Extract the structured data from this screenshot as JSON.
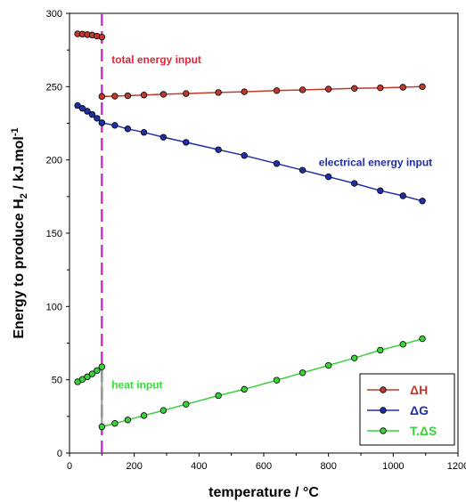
{
  "chart_data": {
    "type": "line",
    "xlabel": "temperature / °C",
    "ylabel_prefix": "Energy to produce H",
    "ylabel_sub": "2",
    "ylabel_suffix": " / kJ.mol",
    "ylabel_sup": "-1",
    "xlim": [
      0,
      1200
    ],
    "ylim": [
      0,
      300
    ],
    "x_ticks": [
      "0",
      "200",
      "400",
      "600",
      "800",
      "1000",
      "1200"
    ],
    "y_ticks": [
      "0",
      "50",
      "100",
      "150",
      "200",
      "250",
      "300"
    ],
    "grid": false,
    "legend_position": "bottom-right",
    "phase_boundary_x": 100,
    "series": [
      {
        "name": "ΔH",
        "color": "#c0392b",
        "segments": [
          [
            [
              25,
              286
            ],
            [
              40,
              285.8
            ],
            [
              55,
              285.5
            ],
            [
              70,
              285.2
            ],
            [
              85,
              284.5
            ],
            [
              100,
              283.8
            ]
          ],
          [
            [
              100,
              243.3
            ],
            [
              140,
              243.5
            ],
            [
              180,
              243.8
            ],
            [
              230,
              244.3
            ],
            [
              290,
              244.8
            ],
            [
              360,
              245.3
            ],
            [
              460,
              246.0
            ],
            [
              540,
              246.5
            ],
            [
              640,
              247.3
            ],
            [
              720,
              247.8
            ],
            [
              800,
              248.3
            ],
            [
              880,
              248.8
            ],
            [
              960,
              249.2
            ],
            [
              1030,
              249.6
            ],
            [
              1090,
              250.0
            ]
          ]
        ]
      },
      {
        "name": "ΔG",
        "color": "#1f2fa6",
        "segments": [
          [
            [
              25,
              237.1
            ],
            [
              40,
              235.2
            ],
            [
              55,
              233.2
            ],
            [
              70,
              231.0
            ],
            [
              85,
              228.4
            ],
            [
              100,
              225.3
            ]
          ],
          [
            [
              100,
              225.3
            ],
            [
              140,
              223.6
            ],
            [
              180,
              221.2
            ],
            [
              230,
              218.8
            ],
            [
              290,
              215.5
            ],
            [
              360,
              212.0
            ],
            [
              460,
              207.0
            ],
            [
              540,
              203.0
            ],
            [
              640,
              197.5
            ],
            [
              720,
              193.0
            ],
            [
              800,
              188.5
            ],
            [
              880,
              184.0
            ],
            [
              960,
              179.0
            ],
            [
              1030,
              175.5
            ],
            [
              1090,
              172.0
            ]
          ]
        ]
      },
      {
        "name": "T.ΔS",
        "color": "#3ad13a",
        "segments": [
          [
            [
              25,
              48.6
            ],
            [
              40,
              50.3
            ],
            [
              55,
              52.0
            ],
            [
              70,
              54.0
            ],
            [
              85,
              56.3
            ],
            [
              100,
              58.8
            ]
          ],
          [
            [
              100,
              17.9
            ],
            [
              140,
              20.2
            ],
            [
              180,
              22.6
            ],
            [
              230,
              25.6
            ],
            [
              290,
              29.1
            ],
            [
              360,
              33.3
            ],
            [
              460,
              39.2
            ],
            [
              540,
              43.5
            ],
            [
              640,
              49.7
            ],
            [
              720,
              54.8
            ],
            [
              800,
              59.8
            ],
            [
              880,
              64.8
            ],
            [
              960,
              70.2
            ],
            [
              1030,
              74.2
            ],
            [
              1090,
              78.0
            ]
          ]
        ]
      }
    ],
    "annotations": [
      {
        "text": "total energy input",
        "x": 130,
        "y": 266,
        "color": "#e0263a"
      },
      {
        "text": "electrical energy input",
        "x": 770,
        "y": 196,
        "color": "#1f2fa6"
      },
      {
        "text": "heat input",
        "x": 130,
        "y": 44,
        "color": "#35e035"
      }
    ],
    "colors": {
      "phase_line": "#cc33cc",
      "heat_gap_line": "#999999"
    }
  }
}
